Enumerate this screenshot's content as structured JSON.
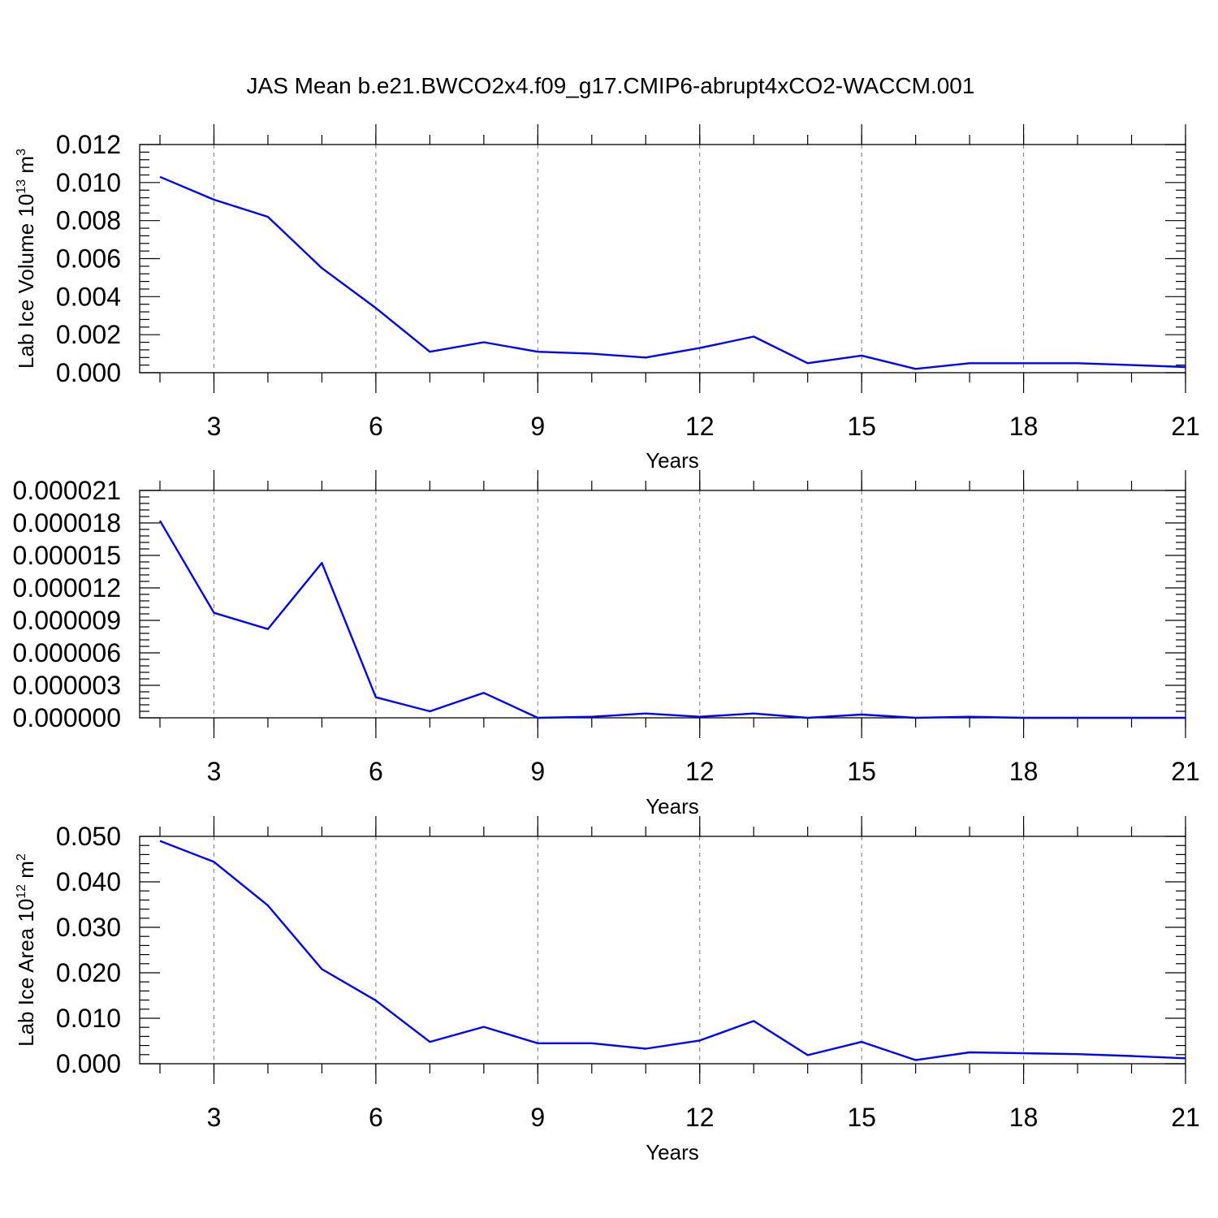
{
  "title": "JAS Mean b.e21.BWCO2x4.f09_g17.CMIP6-abrupt4xCO2-WACCM.001",
  "chart_data": [
    {
      "type": "line",
      "ylabel_main": "Lab Ice Volume 10",
      "ylabel_exp": "13",
      "ylabel_unit": " m",
      "ylabel_unit_exp": "3",
      "xlabel": "Years",
      "xlim": [
        2,
        21
      ],
      "ylim": [
        0,
        0.012
      ],
      "xticks": [
        "3",
        "6",
        "9",
        "12",
        "15",
        "18",
        "21"
      ],
      "yticks": [
        "0.000",
        "0.002",
        "0.004",
        "0.006",
        "0.008",
        "0.010",
        "0.012"
      ],
      "x": [
        2,
        3,
        4,
        5,
        6,
        7,
        8,
        9,
        10,
        11,
        12,
        13,
        14,
        15,
        16,
        17,
        18,
        19,
        20,
        21
      ],
      "series": [
        {
          "color": "#0000ff",
          "values": [
            0.0103,
            0.0091,
            0.0082,
            0.0055,
            0.0034,
            0.0011,
            0.0016,
            0.0011,
            0.001,
            0.0008,
            0.0013,
            0.0019,
            0.0005,
            0.0009,
            0.0002,
            0.0005,
            0.0005,
            0.0005,
            0.0004,
            0.0003
          ]
        }
      ]
    },
    {
      "type": "line",
      "ylabel_main": "",
      "xlabel": "Years",
      "xlim": [
        2,
        21
      ],
      "ylim": [
        0,
        2.1e-05
      ],
      "xticks": [
        "3",
        "6",
        "9",
        "12",
        "15",
        "18",
        "21"
      ],
      "yticks": [
        "0.000000",
        "0.000003",
        "0.000006",
        "0.000009",
        "0.000012",
        "0.000015",
        "0.000018",
        "0.000021"
      ],
      "x": [
        2,
        3,
        4,
        5,
        6,
        7,
        8,
        9,
        10,
        11,
        12,
        13,
        14,
        15,
        16,
        17,
        18,
        19,
        20,
        21
      ],
      "series": [
        {
          "color": "#0000ff",
          "values": [
            1.82e-05,
            9.7e-06,
            8.2e-06,
            1.43e-05,
            1.9e-06,
            6e-07,
            2.3e-06,
            0.0,
            1e-07,
            4e-07,
            1e-07,
            4e-07,
            0.0,
            3e-07,
            0.0,
            1e-07,
            0.0,
            0.0,
            0.0,
            0.0
          ]
        }
      ]
    },
    {
      "type": "line",
      "ylabel_main": "Lab Ice Area 10",
      "ylabel_exp": "12",
      "ylabel_unit": " m",
      "ylabel_unit_exp": "2",
      "xlabel": "Years",
      "xlim": [
        2,
        21
      ],
      "ylim": [
        0,
        0.05
      ],
      "xticks": [
        "3",
        "6",
        "9",
        "12",
        "15",
        "18",
        "21"
      ],
      "yticks": [
        "0.000",
        "0.010",
        "0.020",
        "0.030",
        "0.040",
        "0.050"
      ],
      "x": [
        2,
        3,
        4,
        5,
        6,
        7,
        8,
        9,
        10,
        11,
        12,
        13,
        14,
        15,
        16,
        17,
        18,
        19,
        20,
        21
      ],
      "series": [
        {
          "color": "#0000ff",
          "values": [
            0.049,
            0.0444,
            0.0348,
            0.0208,
            0.0139,
            0.0048,
            0.0081,
            0.0045,
            0.0045,
            0.0033,
            0.0051,
            0.0094,
            0.0019,
            0.0048,
            0.0008,
            0.0025,
            0.0023,
            0.0021,
            0.0017,
            0.0012
          ]
        }
      ]
    }
  ]
}
